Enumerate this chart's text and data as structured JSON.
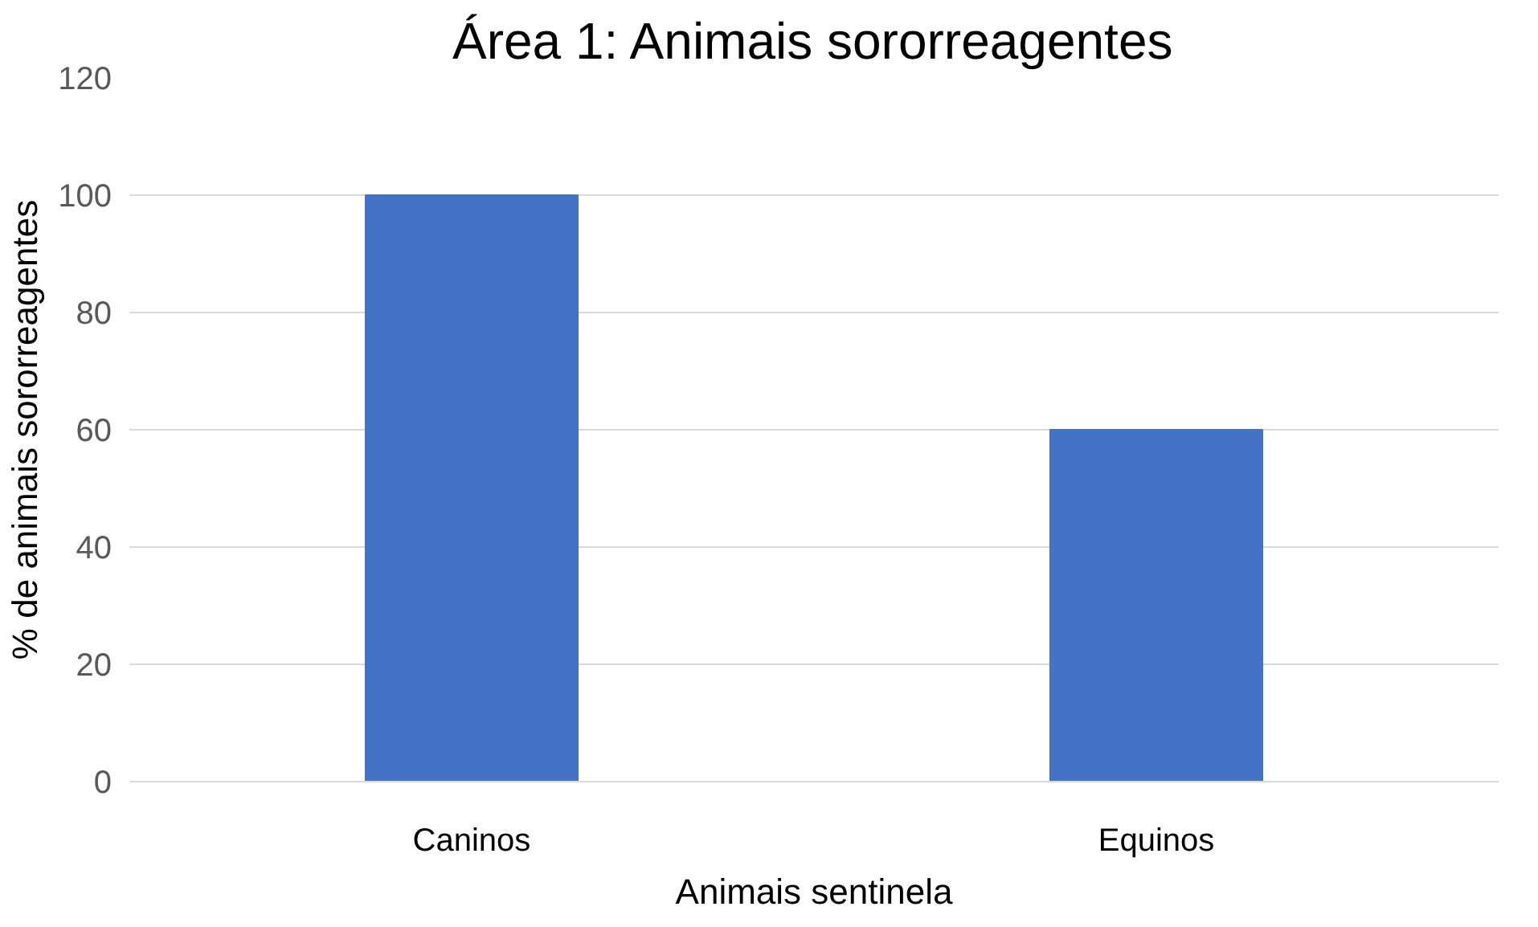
{
  "chart_data": {
    "type": "bar",
    "title": "Área 1: Animais sororreagentes",
    "xlabel": "Animais sentinela",
    "ylabel": "% de animais sororreagentes",
    "categories": [
      "Caninos",
      "Equinos"
    ],
    "values": [
      100,
      60
    ],
    "color": "#4472c4",
    "ylim": [
      0,
      120
    ],
    "yticks": [
      0,
      20,
      40,
      60,
      80,
      100,
      120
    ],
    "grid": "y"
  }
}
